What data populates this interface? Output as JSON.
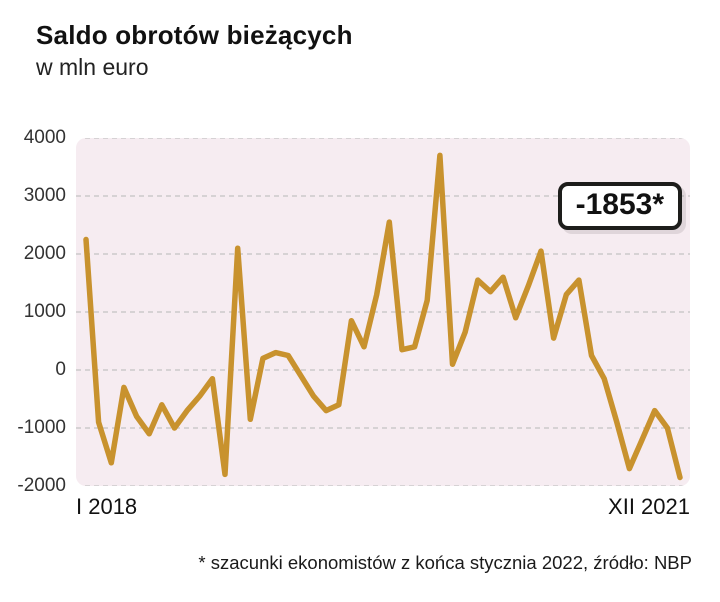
{
  "title": "Saldo obrotów bieżących",
  "subtitle": "w mln euro",
  "callout_value": "-1853*",
  "footnote": "* szacunki ekonomistów z końca stycznia 2022, źródło: NBP",
  "x_axis": {
    "start_label": "I 2018",
    "end_label": "XII 2021"
  },
  "colors": {
    "line": "#c8922e",
    "plot_bg": "#f6ecf1",
    "grid": "#c2c2c2",
    "callout_border": "#1d1d1b",
    "text": "#1a1a1a"
  },
  "chart_data": {
    "type": "line",
    "title": "Saldo obrotów bieżących",
    "ylabel": "mln euro",
    "ylim": [
      -2000,
      4000
    ],
    "yticks": [
      4000,
      3000,
      2000,
      1000,
      0,
      -1000,
      -2000
    ],
    "xticks": [
      "I 2018",
      "XII 2021"
    ],
    "x_note": "monthly values from I 2018 to XII 2021",
    "grid": true,
    "annotation": {
      "label": "-1853*",
      "applies_to": "XII 2021",
      "note": "estimate"
    },
    "values": [
      2250,
      -900,
      -1600,
      -300,
      -800,
      -1100,
      -600,
      -1000,
      -700,
      -450,
      -150,
      -1800,
      2100,
      -850,
      200,
      300,
      250,
      -100,
      -450,
      -700,
      -600,
      850,
      400,
      1300,
      2550,
      350,
      400,
      1200,
      3700,
      100,
      650,
      1550,
      1350,
      1600,
      900,
      1450,
      2050,
      550,
      1300,
      1550,
      250,
      -150,
      -900,
      -1700,
      -1200,
      -700,
      -1000,
      -1853
    ]
  }
}
